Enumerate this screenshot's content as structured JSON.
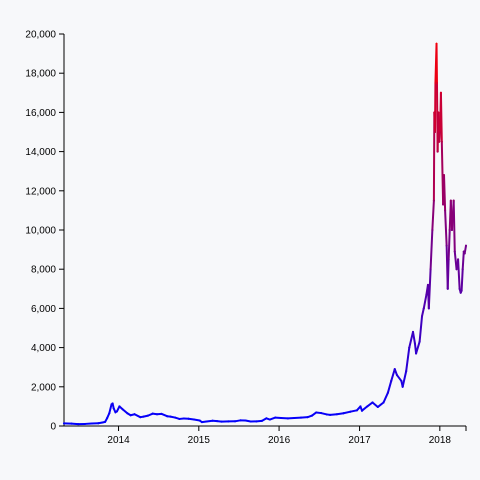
{
  "chart_data": {
    "type": "line",
    "title": "",
    "xlabel": "",
    "ylabel": "",
    "xlim": [
      "2013-04-28",
      "2018-04-30"
    ],
    "ylim": [
      0,
      20000
    ],
    "grid": false,
    "legend": "none",
    "x_ticks": [
      {
        "date": "2014-01-01",
        "label": "2014"
      },
      {
        "date": "2015-01-01",
        "label": "2015"
      },
      {
        "date": "2016-01-01",
        "label": "2016"
      },
      {
        "date": "2017-01-01",
        "label": "2017"
      },
      {
        "date": "2018-01-01",
        "label": "2018"
      }
    ],
    "y_ticks": [
      {
        "value": 0,
        "label": "0"
      },
      {
        "value": 2000,
        "label": "2,000"
      },
      {
        "value": 4000,
        "label": "4,000"
      },
      {
        "value": 6000,
        "label": "6,000"
      },
      {
        "value": 8000,
        "label": "8,000"
      },
      {
        "value": 10000,
        "label": "10,000"
      },
      {
        "value": 12000,
        "label": "12,000"
      },
      {
        "value": 14000,
        "label": "14,000"
      },
      {
        "value": 16000,
        "label": "16,000"
      },
      {
        "value": 18000,
        "label": "18,000"
      },
      {
        "value": 20000,
        "label": "20,000"
      }
    ],
    "color_scale": {
      "low": "#0000ff",
      "high": "#ff0000"
    },
    "series": [
      {
        "x": [
          "2013-04-28",
          "2013-06-01",
          "2013-07-01",
          "2013-08-01",
          "2013-09-01",
          "2013-10-01",
          "2013-10-20",
          "2013-11-01",
          "2013-11-10",
          "2013-11-20",
          "2013-11-30",
          "2013-12-05",
          "2013-12-10",
          "2013-12-18",
          "2013-12-25",
          "2014-01-05",
          "2014-01-20",
          "2014-02-10",
          "2014-02-25",
          "2014-03-15",
          "2014-04-10",
          "2014-04-25",
          "2014-05-15",
          "2014-06-05",
          "2014-06-25",
          "2014-07-15",
          "2014-08-10",
          "2014-08-25",
          "2014-09-15",
          "2014-10-05",
          "2014-10-25",
          "2014-11-15",
          "2014-12-10",
          "2015-01-05",
          "2015-01-15",
          "2015-02-05",
          "2015-03-05",
          "2015-03-25",
          "2015-04-15",
          "2015-05-15",
          "2015-06-15",
          "2015-07-10",
          "2015-08-01",
          "2015-08-25",
          "2015-09-20",
          "2015-10-15",
          "2015-11-04",
          "2015-11-20",
          "2015-12-15",
          "2016-01-10",
          "2016-02-10",
          "2016-03-10",
          "2016-04-10",
          "2016-05-10",
          "2016-05-30",
          "2016-06-18",
          "2016-07-10",
          "2016-08-05",
          "2016-08-20",
          "2016-09-20",
          "2016-10-20",
          "2016-11-20",
          "2016-12-20",
          "2017-01-05",
          "2017-01-12",
          "2017-02-05",
          "2017-03-01",
          "2017-03-25",
          "2017-04-20",
          "2017-05-10",
          "2017-05-25",
          "2017-06-10",
          "2017-06-20",
          "2017-07-10",
          "2017-07-16",
          "2017-08-01",
          "2017-08-15",
          "2017-09-01",
          "2017-09-10",
          "2017-09-15",
          "2017-10-01",
          "2017-10-12",
          "2017-10-20",
          "2017-11-01",
          "2017-11-08",
          "2017-11-12",
          "2017-11-20",
          "2017-11-28",
          "2017-12-05",
          "2017-12-07",
          "2017-12-10",
          "2017-12-12",
          "2017-12-17",
          "2017-12-19",
          "2017-12-22",
          "2017-12-25",
          "2017-12-29",
          "2018-01-02",
          "2018-01-06",
          "2018-01-10",
          "2018-01-16",
          "2018-01-20",
          "2018-01-25",
          "2018-02-01",
          "2018-02-06",
          "2018-02-10",
          "2018-02-15",
          "2018-02-20",
          "2018-02-25",
          "2018-03-05",
          "2018-03-10",
          "2018-03-18",
          "2018-03-25",
          "2018-04-01",
          "2018-04-06",
          "2018-04-10",
          "2018-04-15",
          "2018-04-20",
          "2018-04-24",
          "2018-04-30"
        ],
        "y": [
          135,
          120,
          95,
          105,
          130,
          140,
          180,
          210,
          400,
          650,
          1100,
          1150,
          900,
          700,
          750,
          1000,
          850,
          650,
          550,
          600,
          450,
          480,
          530,
          630,
          600,
          620,
          500,
          480,
          430,
          360,
          380,
          370,
          330,
          280,
          200,
          230,
          270,
          250,
          225,
          235,
          240,
          290,
          280,
          230,
          235,
          260,
          390,
          330,
          430,
          410,
          390,
          410,
          425,
          450,
          530,
          690,
          660,
          590,
          570,
          600,
          650,
          730,
          800,
          1000,
          780,
          1000,
          1200,
          970,
          1200,
          1700,
          2300,
          2900,
          2600,
          2300,
          2000,
          2800,
          4000,
          4800,
          4200,
          3700,
          4300,
          5600,
          6000,
          6700,
          7200,
          6000,
          8000,
          10000,
          11500,
          16000,
          15000,
          17500,
          19500,
          17500,
          14000,
          16000,
          14500,
          15000,
          17000,
          14500,
          11300,
          12800,
          11000,
          9200,
          7000,
          8500,
          10000,
          11500,
          10000,
          11500,
          8900,
          8000,
          8500,
          7000,
          6800,
          6900,
          8000,
          8900,
          8800,
          9200
        ]
      }
    ]
  }
}
